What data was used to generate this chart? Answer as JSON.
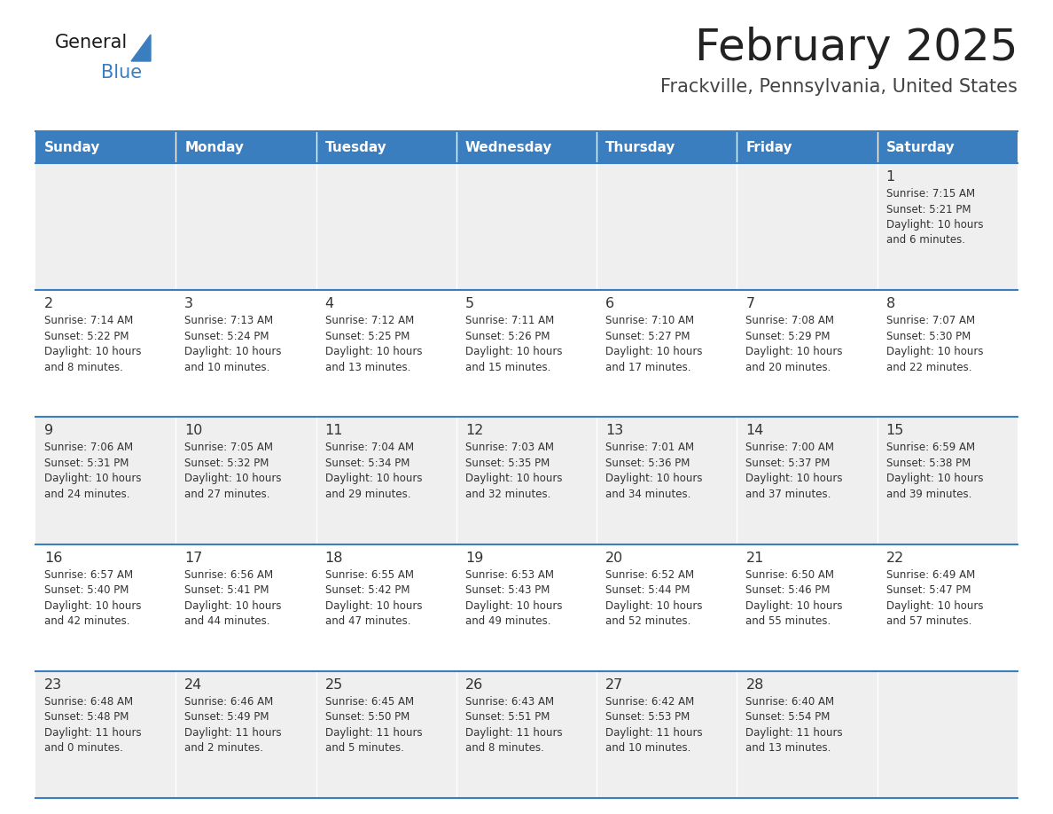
{
  "title": "February 2025",
  "subtitle": "Frackville, Pennsylvania, United States",
  "header_bg": "#3a7ebf",
  "header_text_color": "#ffffff",
  "row_bg_light": "#efefef",
  "row_bg_white": "#ffffff",
  "border_color": "#3a7ebf",
  "cell_border_color": "#cccccc",
  "day_headers": [
    "Sunday",
    "Monday",
    "Tuesday",
    "Wednesday",
    "Thursday",
    "Friday",
    "Saturday"
  ],
  "title_color": "#222222",
  "subtitle_color": "#444444",
  "text_color": "#333333",
  "day_num_color": "#333333",
  "logo_triangle_color": "#3a7ebf",
  "calendar": [
    [
      {
        "day": "",
        "info": ""
      },
      {
        "day": "",
        "info": ""
      },
      {
        "day": "",
        "info": ""
      },
      {
        "day": "",
        "info": ""
      },
      {
        "day": "",
        "info": ""
      },
      {
        "day": "",
        "info": ""
      },
      {
        "day": "1",
        "info": "Sunrise: 7:15 AM\nSunset: 5:21 PM\nDaylight: 10 hours\nand 6 minutes."
      }
    ],
    [
      {
        "day": "2",
        "info": "Sunrise: 7:14 AM\nSunset: 5:22 PM\nDaylight: 10 hours\nand 8 minutes."
      },
      {
        "day": "3",
        "info": "Sunrise: 7:13 AM\nSunset: 5:24 PM\nDaylight: 10 hours\nand 10 minutes."
      },
      {
        "day": "4",
        "info": "Sunrise: 7:12 AM\nSunset: 5:25 PM\nDaylight: 10 hours\nand 13 minutes."
      },
      {
        "day": "5",
        "info": "Sunrise: 7:11 AM\nSunset: 5:26 PM\nDaylight: 10 hours\nand 15 minutes."
      },
      {
        "day": "6",
        "info": "Sunrise: 7:10 AM\nSunset: 5:27 PM\nDaylight: 10 hours\nand 17 minutes."
      },
      {
        "day": "7",
        "info": "Sunrise: 7:08 AM\nSunset: 5:29 PM\nDaylight: 10 hours\nand 20 minutes."
      },
      {
        "day": "8",
        "info": "Sunrise: 7:07 AM\nSunset: 5:30 PM\nDaylight: 10 hours\nand 22 minutes."
      }
    ],
    [
      {
        "day": "9",
        "info": "Sunrise: 7:06 AM\nSunset: 5:31 PM\nDaylight: 10 hours\nand 24 minutes."
      },
      {
        "day": "10",
        "info": "Sunrise: 7:05 AM\nSunset: 5:32 PM\nDaylight: 10 hours\nand 27 minutes."
      },
      {
        "day": "11",
        "info": "Sunrise: 7:04 AM\nSunset: 5:34 PM\nDaylight: 10 hours\nand 29 minutes."
      },
      {
        "day": "12",
        "info": "Sunrise: 7:03 AM\nSunset: 5:35 PM\nDaylight: 10 hours\nand 32 minutes."
      },
      {
        "day": "13",
        "info": "Sunrise: 7:01 AM\nSunset: 5:36 PM\nDaylight: 10 hours\nand 34 minutes."
      },
      {
        "day": "14",
        "info": "Sunrise: 7:00 AM\nSunset: 5:37 PM\nDaylight: 10 hours\nand 37 minutes."
      },
      {
        "day": "15",
        "info": "Sunrise: 6:59 AM\nSunset: 5:38 PM\nDaylight: 10 hours\nand 39 minutes."
      }
    ],
    [
      {
        "day": "16",
        "info": "Sunrise: 6:57 AM\nSunset: 5:40 PM\nDaylight: 10 hours\nand 42 minutes."
      },
      {
        "day": "17",
        "info": "Sunrise: 6:56 AM\nSunset: 5:41 PM\nDaylight: 10 hours\nand 44 minutes."
      },
      {
        "day": "18",
        "info": "Sunrise: 6:55 AM\nSunset: 5:42 PM\nDaylight: 10 hours\nand 47 minutes."
      },
      {
        "day": "19",
        "info": "Sunrise: 6:53 AM\nSunset: 5:43 PM\nDaylight: 10 hours\nand 49 minutes."
      },
      {
        "day": "20",
        "info": "Sunrise: 6:52 AM\nSunset: 5:44 PM\nDaylight: 10 hours\nand 52 minutes."
      },
      {
        "day": "21",
        "info": "Sunrise: 6:50 AM\nSunset: 5:46 PM\nDaylight: 10 hours\nand 55 minutes."
      },
      {
        "day": "22",
        "info": "Sunrise: 6:49 AM\nSunset: 5:47 PM\nDaylight: 10 hours\nand 57 minutes."
      }
    ],
    [
      {
        "day": "23",
        "info": "Sunrise: 6:48 AM\nSunset: 5:48 PM\nDaylight: 11 hours\nand 0 minutes."
      },
      {
        "day": "24",
        "info": "Sunrise: 6:46 AM\nSunset: 5:49 PM\nDaylight: 11 hours\nand 2 minutes."
      },
      {
        "day": "25",
        "info": "Sunrise: 6:45 AM\nSunset: 5:50 PM\nDaylight: 11 hours\nand 5 minutes."
      },
      {
        "day": "26",
        "info": "Sunrise: 6:43 AM\nSunset: 5:51 PM\nDaylight: 11 hours\nand 8 minutes."
      },
      {
        "day": "27",
        "info": "Sunrise: 6:42 AM\nSunset: 5:53 PM\nDaylight: 11 hours\nand 10 minutes."
      },
      {
        "day": "28",
        "info": "Sunrise: 6:40 AM\nSunset: 5:54 PM\nDaylight: 11 hours\nand 13 minutes."
      },
      {
        "day": "",
        "info": ""
      }
    ]
  ]
}
